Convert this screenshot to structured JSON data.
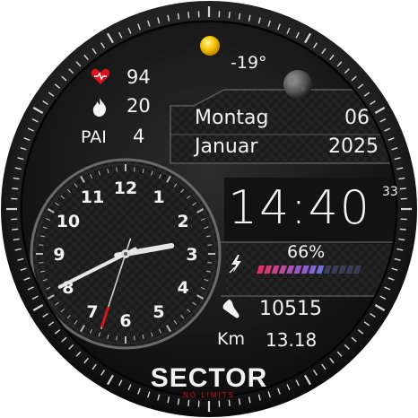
{
  "weather": {
    "temperature": "-19°",
    "sun_icon": "sun-icon",
    "moon_icon": "moon-phase-icon"
  },
  "health": {
    "heart_rate": "94",
    "heart_icon": "heart-rate-icon",
    "calories": "20",
    "calories_icon": "flame-icon",
    "pai_label": "PAI",
    "pai_value": "4"
  },
  "date": {
    "weekday": "Montag",
    "day": "06",
    "month": "Januar",
    "year": "2025"
  },
  "time": {
    "hours_minutes": "14:40",
    "seconds": "33"
  },
  "battery": {
    "percent_text": "66%",
    "level": 0.66,
    "charge_icon": "lightning-icon"
  },
  "activity": {
    "steps": "10515",
    "steps_icon": "shoe-icon",
    "distance_label": "Km",
    "distance": "13.18"
  },
  "dial_numbers": [
    "12",
    "1",
    "2",
    "3",
    "4",
    "5",
    "6",
    "7",
    "8",
    "9",
    "10",
    "11"
  ],
  "analog": {
    "hour": 2,
    "minute": 40,
    "second": 33
  },
  "brand": {
    "name": "SECTOR",
    "tagline": "NO LIMITS"
  },
  "colors": {
    "accent_red": "#d9141e",
    "bezel": "#1a1a1a",
    "text": "#f2f2f2"
  }
}
